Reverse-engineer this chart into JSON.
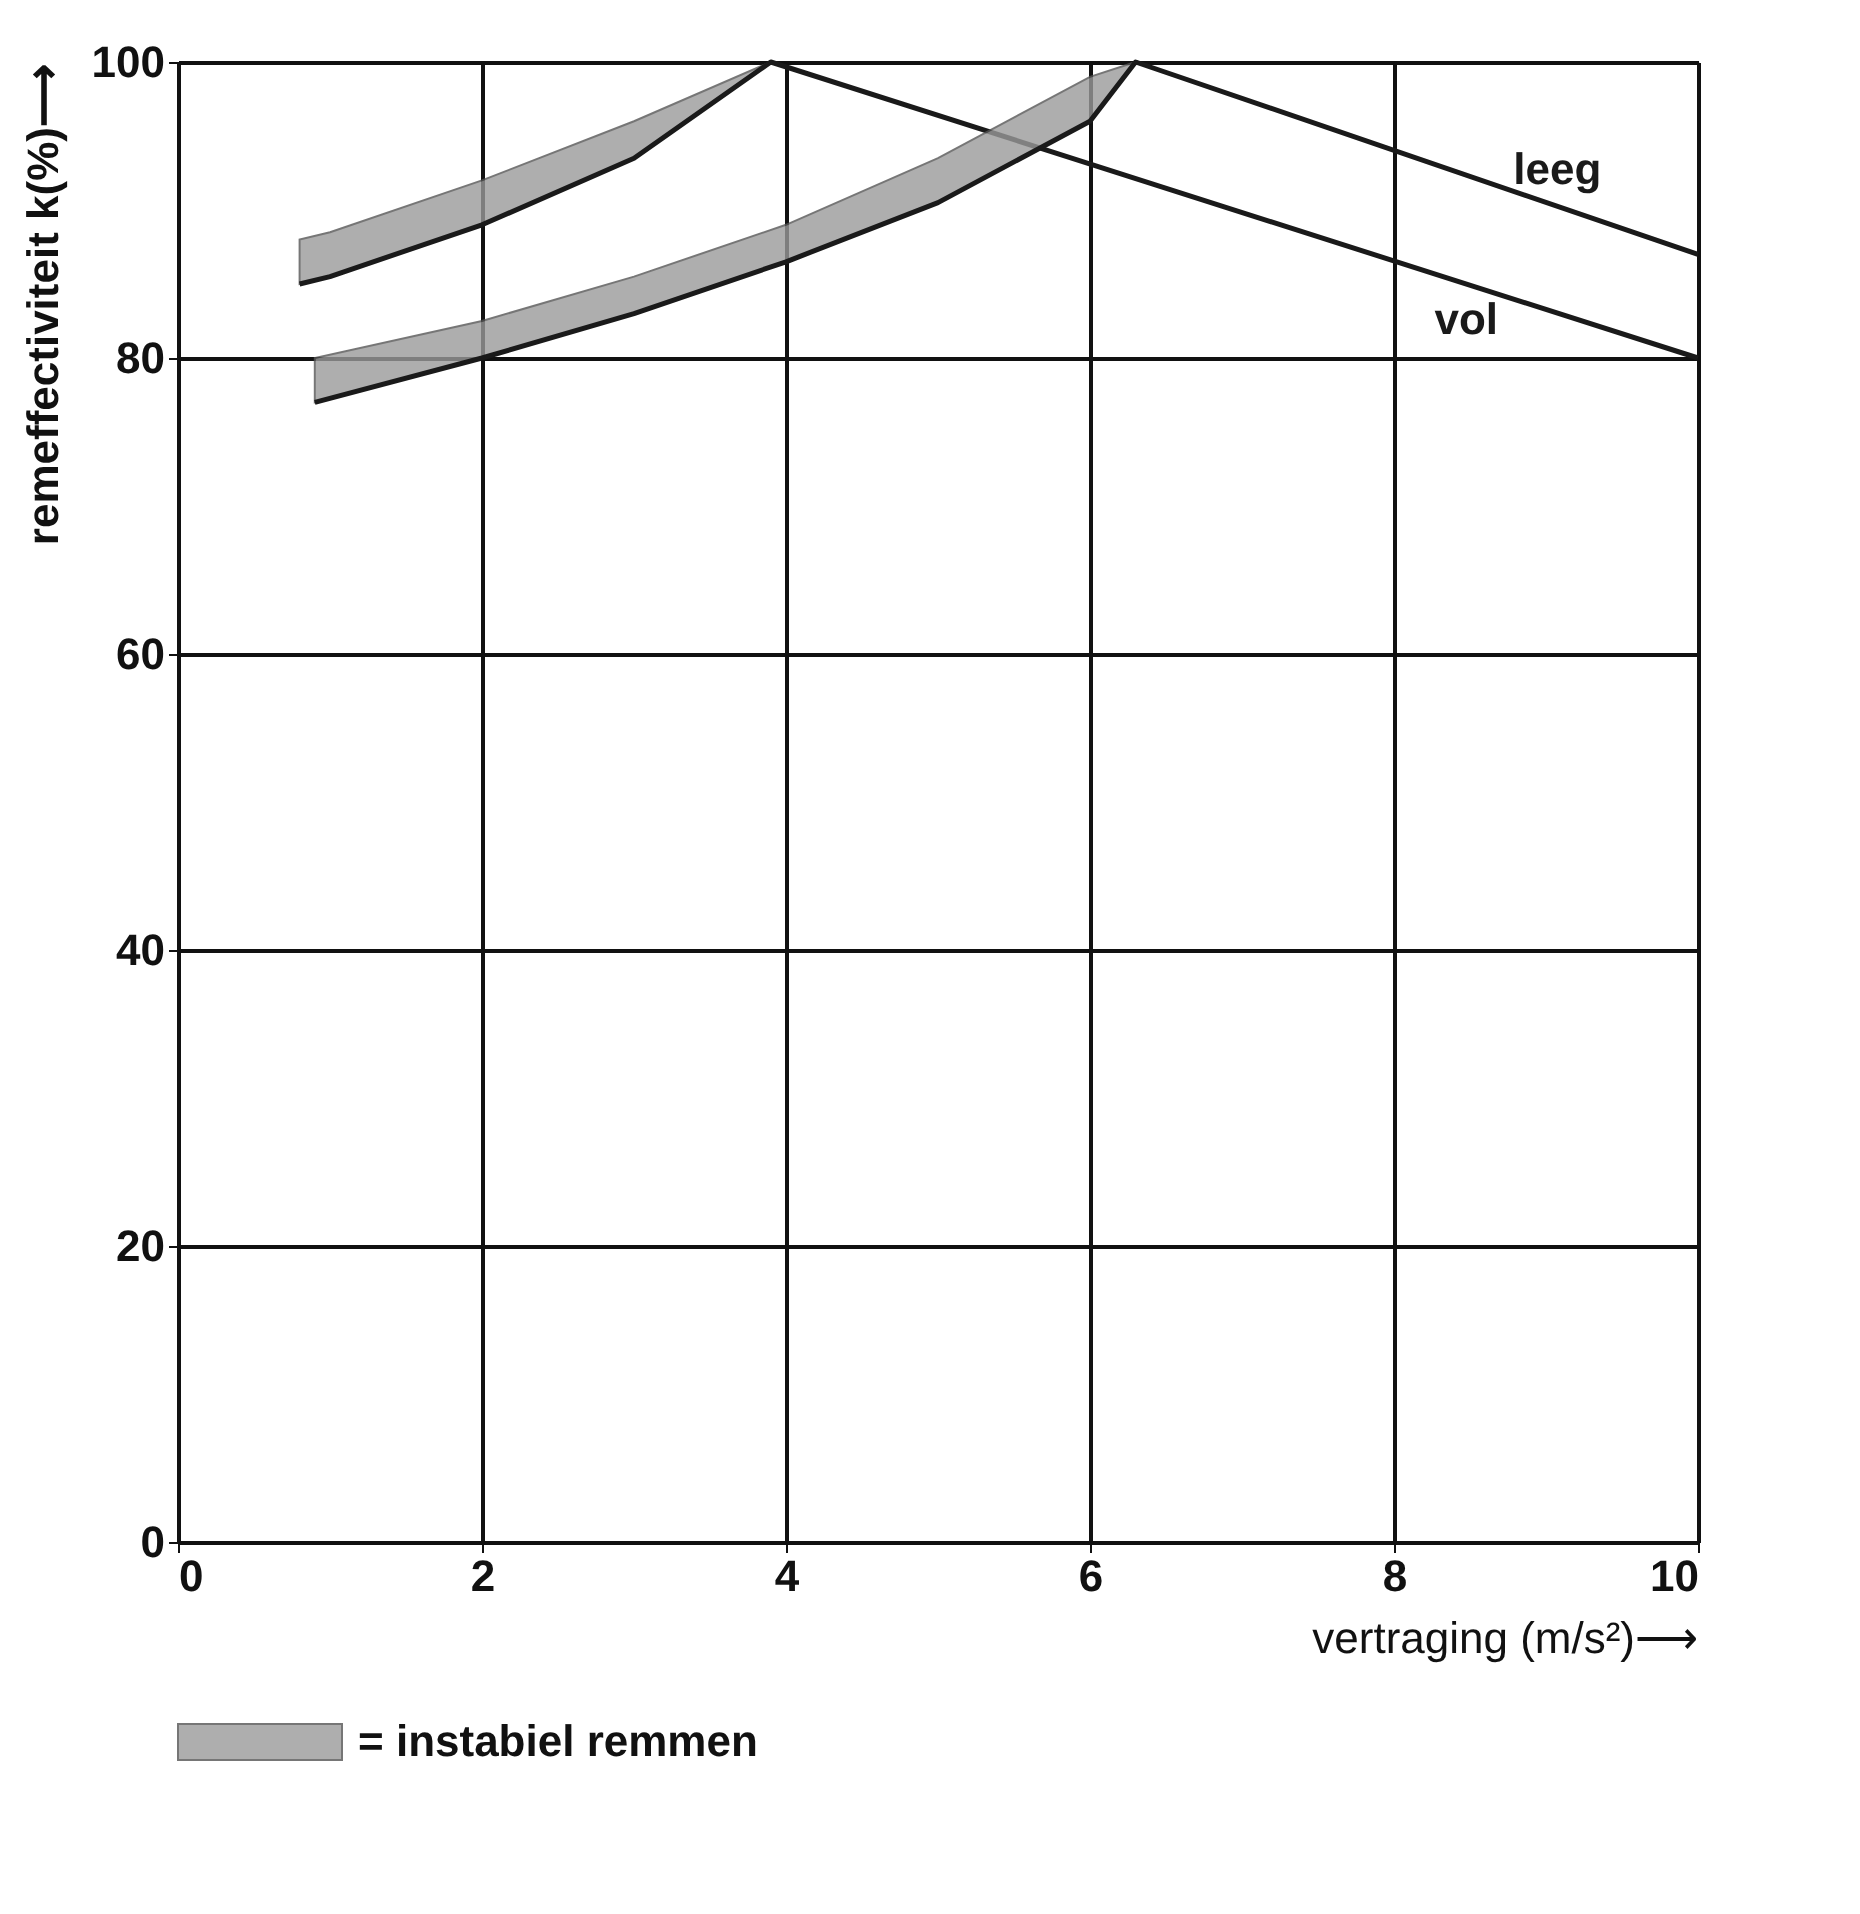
{
  "chart_data": {
    "type": "line",
    "xlabel": "vertraging (m/s²)⟶",
    "ylabel": "remeffectiviteit  k(%)⟶",
    "xlim": [
      0,
      10
    ],
    "ylim": [
      0,
      100
    ],
    "xticks": [
      0,
      2,
      4,
      6,
      8,
      10
    ],
    "yticks": [
      0,
      20,
      40,
      60,
      80,
      100
    ],
    "grid": true,
    "legend": false,
    "series": [
      {
        "name": "vol",
        "color": "#1a1a1a",
        "x": [
          0.8,
          1,
          2,
          3,
          3.9,
          10
        ],
        "values": [
          85,
          85.5,
          89,
          93.5,
          100,
          80
        ],
        "lower": [
          85,
          85.5,
          89,
          93.5,
          100,
          null
        ],
        "upper": [
          88,
          88.5,
          92,
          96,
          100,
          null
        ]
      },
      {
        "name": "leeg",
        "color": "#1a1a1a",
        "x": [
          0.9,
          2,
          3,
          4,
          5,
          6,
          6.3,
          10
        ],
        "values": [
          77,
          80,
          83,
          86.5,
          90.5,
          96,
          100,
          87
        ],
        "lower": [
          77,
          80,
          83,
          86.5,
          90.5,
          96,
          100,
          null
        ],
        "upper": [
          80,
          82.5,
          85.5,
          89,
          93.5,
          99,
          100,
          null
        ]
      }
    ],
    "annotations": [
      "= instabiel remmen"
    ]
  }
}
